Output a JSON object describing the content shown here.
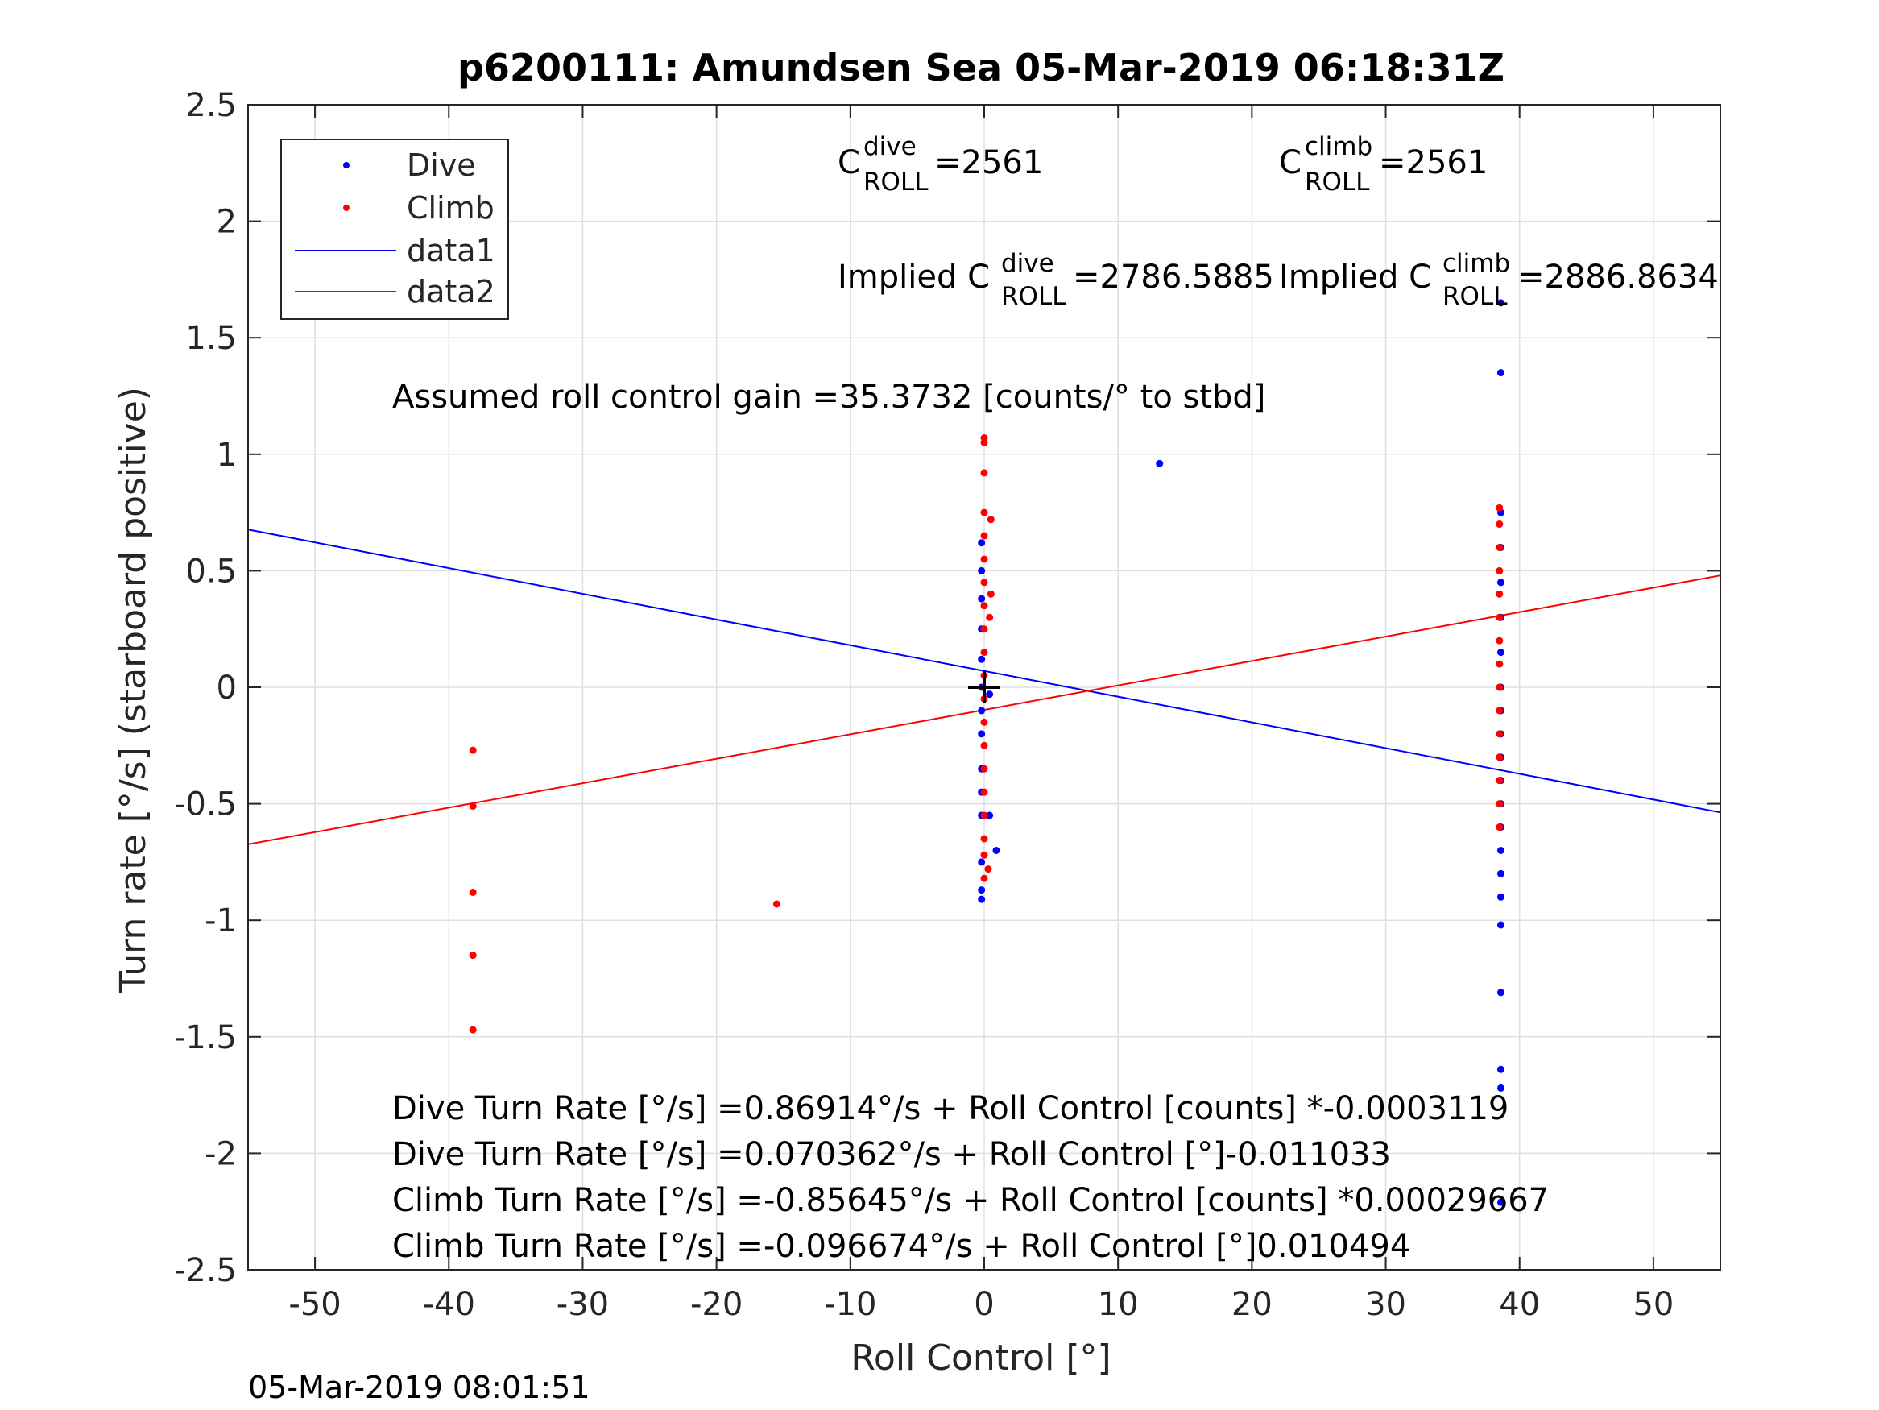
{
  "chart_data": {
    "type": "scatter",
    "title": "p6200111: Amundsen Sea 05-Mar-2019 06:18:31Z",
    "xlabel": "Roll Control [°]",
    "ylabel": "Turn rate [°/s] (starboard positive)",
    "xlim": [
      -55,
      55
    ],
    "ylim": [
      -2.5,
      2.5
    ],
    "x_ticks": [
      -50,
      -40,
      -30,
      -20,
      -10,
      0,
      10,
      20,
      30,
      40,
      50
    ],
    "x_tick_labels": [
      "-50",
      "-40",
      "-30",
      "-20",
      "-10",
      "0",
      "10",
      "20",
      "30",
      "40",
      "50"
    ],
    "y_ticks": [
      2.5,
      2,
      1.5,
      1,
      0.5,
      0,
      -0.5,
      -1,
      -1.5,
      -2,
      -2.5
    ],
    "y_tick_labels": [
      "2.5",
      "2",
      "1.5",
      "1",
      "0.5",
      "0",
      "-0.5",
      "-1",
      "-1.5",
      "-2",
      "-2.5"
    ],
    "grid": true,
    "legend_position": "top-left",
    "legend": [
      "Dive",
      "Climb",
      "data1",
      "data2"
    ],
    "colors": {
      "dive": "#0000ff",
      "climb": "#ff0000",
      "marker": "#000000"
    },
    "series": [
      {
        "name": "Dive",
        "kind": "points",
        "points": [
          [
            38.6,
            1.65
          ],
          [
            38.6,
            1.35
          ],
          [
            38.6,
            0.75
          ],
          [
            38.6,
            0.6
          ],
          [
            38.6,
            0.45
          ],
          [
            38.6,
            0.3
          ],
          [
            38.6,
            0.15
          ],
          [
            38.6,
            0.0
          ],
          [
            38.6,
            -0.1
          ],
          [
            38.6,
            -0.2
          ],
          [
            38.6,
            -0.3
          ],
          [
            38.6,
            -0.4
          ],
          [
            38.6,
            -0.5
          ],
          [
            38.6,
            -0.6
          ],
          [
            38.6,
            -0.7
          ],
          [
            38.6,
            -0.8
          ],
          [
            38.6,
            -0.9
          ],
          [
            38.6,
            -1.02
          ],
          [
            38.6,
            -1.31
          ],
          [
            38.6,
            -1.64
          ],
          [
            38.6,
            -1.72
          ],
          [
            38.6,
            -2.21
          ],
          [
            -0.2,
            0.62
          ],
          [
            -0.2,
            0.5
          ],
          [
            -0.2,
            0.38
          ],
          [
            -0.2,
            0.25
          ],
          [
            -0.2,
            0.12
          ],
          [
            -0.2,
            0.0
          ],
          [
            -0.2,
            -0.1
          ],
          [
            -0.2,
            -0.2
          ],
          [
            -0.2,
            -0.35
          ],
          [
            -0.2,
            -0.45
          ],
          [
            -0.2,
            -0.55
          ],
          [
            -0.2,
            -0.75
          ],
          [
            -0.2,
            -0.87
          ],
          [
            -0.2,
            -0.91
          ],
          [
            0.4,
            -0.03
          ],
          [
            0.4,
            -0.55
          ],
          [
            0.9,
            -0.7
          ],
          [
            13.1,
            0.96
          ]
        ]
      },
      {
        "name": "Climb",
        "kind": "points",
        "points": [
          [
            -38.2,
            -0.27
          ],
          [
            -38.2,
            -0.51
          ],
          [
            -38.2,
            -0.88
          ],
          [
            -38.2,
            -1.15
          ],
          [
            -38.2,
            -1.47
          ],
          [
            -15.5,
            -0.93
          ],
          [
            0.0,
            1.07
          ],
          [
            0.0,
            1.05
          ],
          [
            0.0,
            0.92
          ],
          [
            0.0,
            0.75
          ],
          [
            0.0,
            0.65
          ],
          [
            0.0,
            0.55
          ],
          [
            0.0,
            0.45
          ],
          [
            0.0,
            0.35
          ],
          [
            0.0,
            0.25
          ],
          [
            0.0,
            0.15
          ],
          [
            0.0,
            0.05
          ],
          [
            0.0,
            -0.05
          ],
          [
            0.0,
            -0.15
          ],
          [
            0.0,
            -0.25
          ],
          [
            0.0,
            -0.35
          ],
          [
            0.0,
            -0.45
          ],
          [
            0.0,
            -0.55
          ],
          [
            0.0,
            -0.65
          ],
          [
            0.0,
            -0.72
          ],
          [
            0.0,
            -0.82
          ],
          [
            0.5,
            0.72
          ],
          [
            0.5,
            0.4
          ],
          [
            0.4,
            0.3
          ],
          [
            0.3,
            -0.78
          ],
          [
            38.5,
            0.77
          ],
          [
            38.5,
            0.7
          ],
          [
            38.5,
            0.6
          ],
          [
            38.5,
            0.5
          ],
          [
            38.5,
            0.4
          ],
          [
            38.5,
            0.3
          ],
          [
            38.5,
            0.2
          ],
          [
            38.5,
            0.1
          ],
          [
            38.5,
            0.0
          ],
          [
            38.5,
            -0.1
          ],
          [
            38.5,
            -0.2
          ],
          [
            38.5,
            -0.3
          ],
          [
            38.5,
            -0.4
          ],
          [
            38.5,
            -0.5
          ],
          [
            38.5,
            -0.6
          ]
        ]
      },
      {
        "name": "data1",
        "kind": "line",
        "x": [
          -55,
          55
        ],
        "y": [
          0.677,
          -0.537
        ]
      },
      {
        "name": "data2",
        "kind": "line",
        "x": [
          -55,
          55
        ],
        "y": [
          -0.674,
          0.48
        ]
      },
      {
        "name": "origin-marker",
        "kind": "marker",
        "x": 0,
        "y": 0
      }
    ],
    "annotations": {
      "cdive_prefix": "C",
      "cdive_sup": "dive",
      "cdive_sub": "ROLL",
      "cdive_value": " =2561",
      "cclimb_prefix": "C",
      "cclimb_sup": "climb",
      "cclimb_sub": "ROLL",
      "cclimb_value": " =2561",
      "implied_dive_prefix": "Implied C",
      "implied_dive_sup": "dive",
      "implied_dive_sub": "ROLL",
      "implied_dive_value": " =2786.5885",
      "implied_climb_prefix": "Implied C",
      "implied_climb_sup": "climb",
      "implied_climb_sub": "ROLL",
      "implied_climb_value": " =2886.8634",
      "gain": "Assumed roll control gain =35.3732 [counts/° to stbd]",
      "eq1": "Dive Turn Rate [°/s] =0.86914°/s + Roll Control [counts] *-0.0003119",
      "eq2": "Dive Turn Rate [°/s] =0.070362°/s + Roll Control [°]-0.011033",
      "eq3": "Climb Turn Rate [°/s] =-0.85645°/s + Roll Control [counts] *0.00029667",
      "eq4": "Climb Turn Rate [°/s] =-0.096674°/s + Roll Control [°]0.010494"
    },
    "timestamp": "05-Mar-2019 08:01:51"
  }
}
